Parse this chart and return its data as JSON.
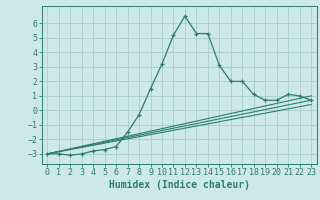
{
  "xlabel": "Humidex (Indice chaleur)",
  "bg_color": "#cce8e8",
  "grid_color": "#aacccc",
  "line_color": "#2e7d6e",
  "xlim": [
    -0.5,
    23.5
  ],
  "ylim": [
    -3.7,
    7.2
  ],
  "xticks": [
    0,
    1,
    2,
    3,
    4,
    5,
    6,
    7,
    8,
    9,
    10,
    11,
    12,
    13,
    14,
    15,
    16,
    17,
    18,
    19,
    20,
    21,
    22,
    23
  ],
  "yticks": [
    -3,
    -2,
    -1,
    0,
    1,
    2,
    3,
    4,
    5,
    6
  ],
  "main_x": [
    0,
    1,
    2,
    3,
    4,
    5,
    6,
    7,
    8,
    9,
    10,
    11,
    12,
    13,
    14,
    15,
    16,
    17,
    18,
    19,
    20,
    21,
    22,
    23
  ],
  "main_y": [
    -3.0,
    -3.0,
    -3.1,
    -3.0,
    -2.8,
    -2.7,
    -2.5,
    -1.5,
    -0.3,
    1.5,
    3.2,
    5.2,
    6.5,
    5.3,
    5.3,
    3.1,
    2.0,
    2.0,
    1.1,
    0.7,
    0.7,
    1.1,
    1.0,
    0.7
  ],
  "line2_x": [
    0,
    23
  ],
  "line2_y": [
    -3.0,
    1.0
  ],
  "line3_x": [
    0,
    23
  ],
  "line3_y": [
    -3.0,
    0.7
  ],
  "line4_x": [
    0,
    23
  ],
  "line4_y": [
    -3.0,
    0.4
  ]
}
